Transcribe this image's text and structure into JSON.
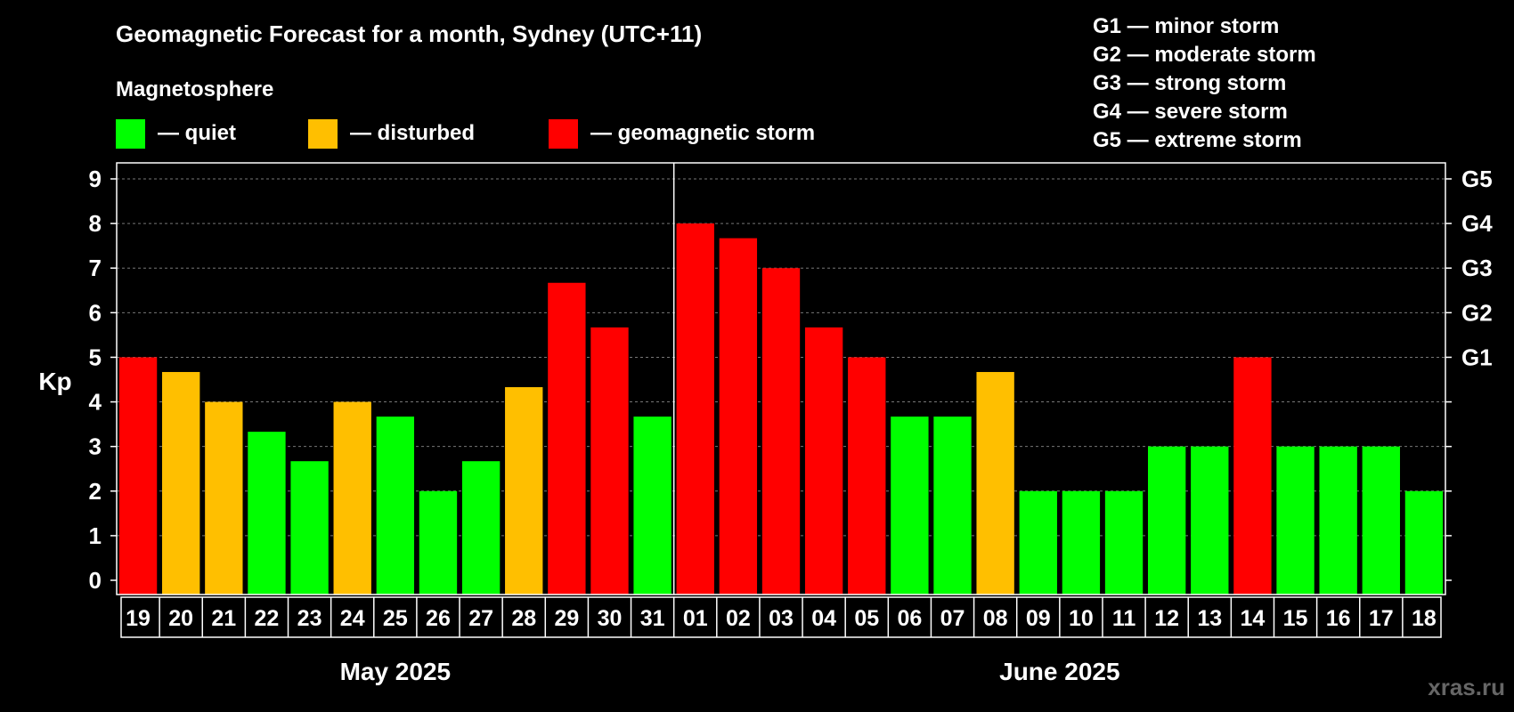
{
  "chart_data": {
    "type": "bar",
    "title": "Geomagnetic Forecast for a month, Sydney (UTC+11)",
    "legend": {
      "heading": "Magnetosphere",
      "items": [
        {
          "key": "quiet",
          "label": "— quiet",
          "color": "#00ff00"
        },
        {
          "key": "disturbed",
          "label": "— disturbed",
          "color": "#ffbf00"
        },
        {
          "key": "storm",
          "label": "— geomagnetic storm",
          "color": "#ff0000"
        }
      ]
    },
    "storm_scale": [
      "G1 — minor storm",
      "G2 — moderate storm",
      "G3 — strong storm",
      "G4 — severe storm",
      "G5 — extreme storm"
    ],
    "ylabel": "Kp",
    "ylim": [
      0,
      9
    ],
    "y_ticks": [
      "0",
      "1",
      "2",
      "3",
      "4",
      "5",
      "6",
      "7",
      "8",
      "9"
    ],
    "right_ticks": [
      {
        "value": 5,
        "label": "G1"
      },
      {
        "value": 6,
        "label": "G2"
      },
      {
        "value": 7,
        "label": "G3"
      },
      {
        "value": 8,
        "label": "G4"
      },
      {
        "value": 9,
        "label": "G5"
      }
    ],
    "grid": true,
    "categories": [
      "19",
      "20",
      "21",
      "22",
      "23",
      "24",
      "25",
      "26",
      "27",
      "28",
      "29",
      "30",
      "31",
      "01",
      "02",
      "03",
      "04",
      "05",
      "06",
      "07",
      "08",
      "09",
      "10",
      "11",
      "12",
      "13",
      "14",
      "15",
      "16",
      "17",
      "18"
    ],
    "values": [
      5,
      4.67,
      4,
      3.33,
      2.67,
      4,
      3.67,
      2,
      2.67,
      4.33,
      6.67,
      5.67,
      3.67,
      8,
      7.67,
      7,
      5.67,
      5,
      3.67,
      3.67,
      4.67,
      2,
      2,
      2,
      3,
      3,
      5,
      3,
      3,
      3,
      2
    ],
    "levels": [
      "storm",
      "disturbed",
      "disturbed",
      "quiet",
      "quiet",
      "disturbed",
      "quiet",
      "quiet",
      "quiet",
      "disturbed",
      "storm",
      "storm",
      "quiet",
      "storm",
      "storm",
      "storm",
      "storm",
      "storm",
      "quiet",
      "quiet",
      "disturbed",
      "quiet",
      "quiet",
      "quiet",
      "quiet",
      "quiet",
      "storm",
      "quiet",
      "quiet",
      "quiet",
      "quiet"
    ],
    "months": [
      {
        "label": "May 2025",
        "days": 13
      },
      {
        "label": "June 2025",
        "days": 18
      }
    ],
    "watermark": "xras.ru"
  }
}
